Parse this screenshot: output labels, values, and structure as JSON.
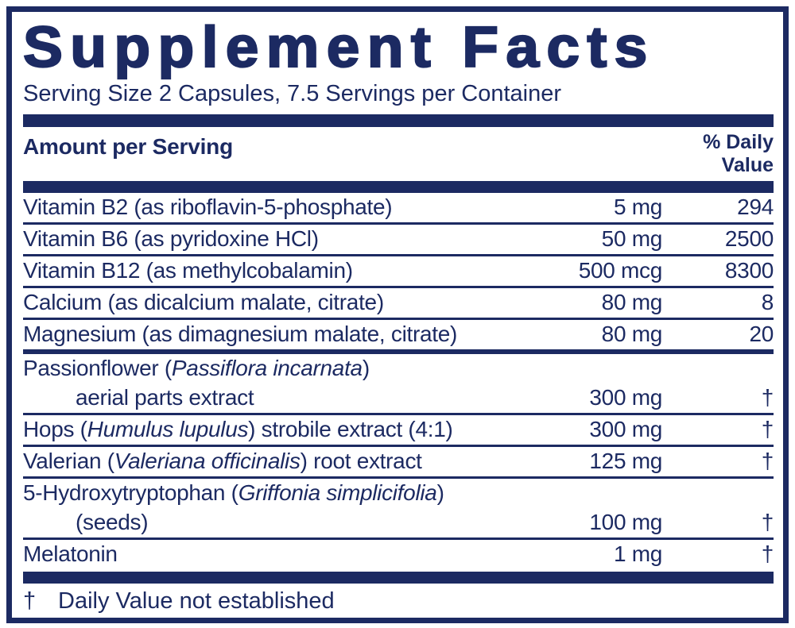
{
  "colors": {
    "navy": "#1c2a62",
    "background": "#ffffff"
  },
  "title": "Supplement Facts",
  "serving_info": "Serving Size 2 Capsules, 7.5 Servings per Container",
  "columns": {
    "amount_header": "Amount per Serving",
    "dv_header_line1": "% Daily",
    "dv_header_line2": "Value"
  },
  "rows": [
    {
      "name_pre": "Vitamin B2 (as riboflavin-5-phosphate)",
      "amount": "5 mg",
      "dv": "294"
    },
    {
      "name_pre": "Vitamin B6 (as pyridoxine HCl)",
      "amount": "50 mg",
      "dv": "2500"
    },
    {
      "name_pre": "Vitamin B12 (as methylcobalamin)",
      "amount": "500 mcg",
      "dv": "8300"
    },
    {
      "name_pre": "Calcium (as dicalcium malate, citrate)",
      "amount": "80 mg",
      "dv": "8"
    },
    {
      "name_pre": "Magnesium (as dimagnesium malate, citrate)",
      "amount": "80 mg",
      "dv": "20"
    },
    {
      "name_pre": "Passionflower (",
      "name_italic": "Passiflora incarnata",
      "name_post": ")",
      "line2": "aerial parts extract",
      "amount": "300 mg",
      "dv": "†"
    },
    {
      "name_pre": "Hops (",
      "name_italic": "Humulus lupulus",
      "name_post": ") strobile extract (4:1)",
      "amount": "300 mg",
      "dv": "†"
    },
    {
      "name_pre": "Valerian (",
      "name_italic": "Valeriana officinalis",
      "name_post": ") root extract",
      "amount": "125 mg",
      "dv": "†"
    },
    {
      "name_pre": "5-Hydroxytryptophan (",
      "name_italic": "Griffonia simplicifolia",
      "name_post": ")",
      "line2": "(seeds)",
      "amount": "100 mg",
      "dv": "†"
    },
    {
      "name_pre": "Melatonin",
      "amount": "1 mg",
      "dv": "†"
    }
  ],
  "footnote": {
    "symbol": "†",
    "text": "Daily Value not established"
  }
}
